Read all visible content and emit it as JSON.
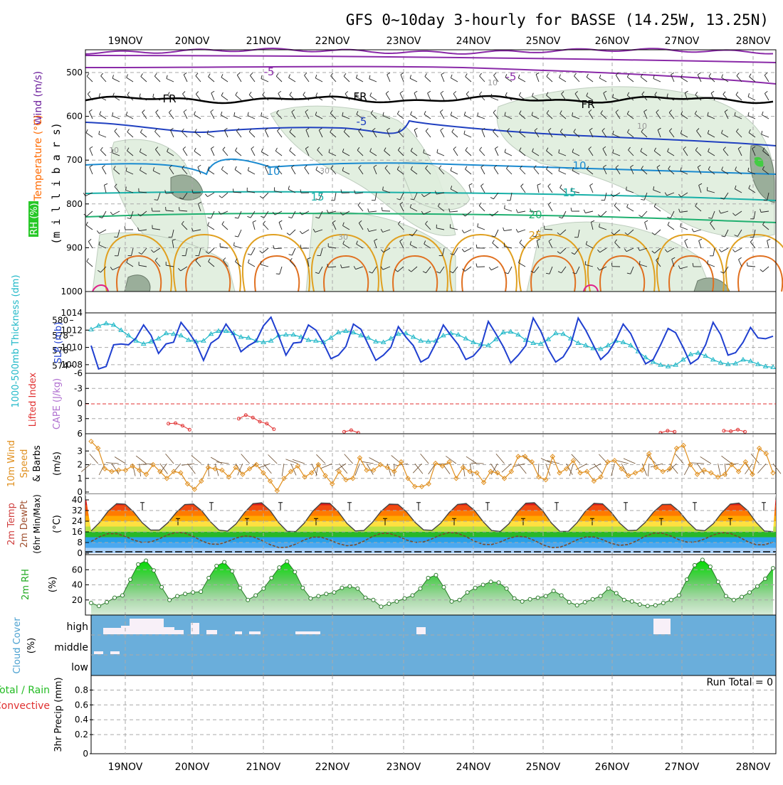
{
  "title": "GFS 0~10day 3-hourly for BASSE (14.25W, 13.25N)",
  "dates": [
    "19NOV",
    "20NOV",
    "21NOV",
    "22NOV",
    "23NOV",
    "24NOV",
    "25NOV",
    "26NOV",
    "27NOV",
    "28NOV"
  ],
  "colors": {
    "grid": "#aaaaaa",
    "wind_label": "#6a1b9a",
    "temp_label": "#ff6a00",
    "rh_label": "#00b000",
    "slp": "#1f3fd0",
    "thickness": "#20b8c8",
    "lifted": "#e03030",
    "cape": "#b070d0",
    "wind10": "#e09020",
    "rh2m": "#22cc22",
    "cloud": "#6aaedb",
    "cloud_gap": "#f8f0f8"
  },
  "panels": {
    "upper": {
      "ylabel_wind": "Wind (m/s)",
      "ylabel_temp": "Temperature (°C)",
      "ylabel_rh": "RH (%)",
      "ylabel_unit": "(m i l l i b a r s)",
      "yticks": [
        "500",
        "600",
        "700",
        "800",
        "900",
        "1000"
      ],
      "contour_labels": [
        {
          "text": "-5",
          "color": "#8a2aa8"
        },
        {
          "text": "-5",
          "color": "#8a2aa8"
        },
        {
          "text": "FR",
          "color": "#000000"
        },
        {
          "text": "FR",
          "color": "#000000"
        },
        {
          "text": "FR",
          "color": "#000000"
        },
        {
          "text": "-5",
          "color": "#2040c0"
        },
        {
          "text": "10",
          "color": "#1a8ad0"
        },
        {
          "text": "10",
          "color": "#1a8ad0"
        },
        {
          "text": "15",
          "color": "#18b0a8"
        },
        {
          "text": "15",
          "color": "#18b0a8"
        },
        {
          "text": "20",
          "color": "#20b070"
        },
        {
          "text": "25",
          "color": "#e0a020"
        },
        {
          "text": "10",
          "color": "#999999"
        },
        {
          "text": "10",
          "color": "#999999"
        },
        {
          "text": "30",
          "color": "#999999"
        },
        {
          "text": "30",
          "color": "#999999"
        },
        {
          "text": "10",
          "color": "#999999"
        }
      ]
    },
    "slp": {
      "ylabel_slp": "SLP (mb)",
      "ylabel_thick": "1000-500mb Thickness (dm)",
      "left_ticks": [
        "580",
        "578",
        "576",
        "574"
      ],
      "right_ticks": [
        "1014",
        "1012",
        "1010",
        "1008"
      ]
    },
    "li": {
      "ylabel_li": "Lifted Index",
      "ylabel_cape": "CAPE (J/kg)",
      "ticks": [
        "-6",
        "-3",
        "0",
        "3",
        "6"
      ]
    },
    "wind": {
      "ylabel_1": "10m Wind",
      "ylabel_2": "Speed",
      "ylabel_3": "& Barbs",
      "ylabel_unit": "(m/s)",
      "ticks": [
        "3",
        "2",
        "1",
        "0"
      ]
    },
    "temp": {
      "ylabel_1": "2m Temp",
      "ylabel_2": "2m DewPt",
      "ylabel_3": "(6hr Min/Max)",
      "ylabel_unit": "(°C)",
      "ticks": [
        "40",
        "32",
        "24",
        "16",
        "8",
        "0"
      ]
    },
    "rh": {
      "ylabel": "2m RH",
      "ylabel_unit": "(%)",
      "ticks": [
        "60",
        "40",
        "20"
      ]
    },
    "cloud": {
      "ylabel": "Cloud Cover",
      "ylabel_unit": "(%)",
      "levels": [
        "high",
        "middle",
        "low"
      ]
    },
    "precip": {
      "ylabel_1": "Total / Rain",
      "ylabel_2": "Convective",
      "ylabel_3": "3hr Precip (mm)",
      "ticks": [
        "0.8",
        "0.6",
        "0.4",
        "0.2",
        "0"
      ],
      "run_total": "Run Total = 0"
    }
  },
  "chart_data": [
    {
      "type": "line",
      "title": "SLP (mb)",
      "series": [
        {
          "name": "SLP (mb)",
          "values": [
            1010.2,
            1007.5,
            1007.8,
            1010.3,
            1010.4,
            1010.3,
            1011.1,
            1012.6,
            1011.4,
            1009.3,
            1010.4,
            1010.6,
            1012.9,
            1011.8,
            1010.5,
            1008.5,
            1010.5,
            1011.1,
            1012.7,
            1011.5,
            1009.5,
            1010.2,
            1010.7,
            1012.5,
            1013.5,
            1011.4,
            1009.1,
            1010.5,
            1010.6,
            1012.6,
            1012.0,
            1010.5,
            1008.7,
            1009.1,
            1010.1,
            1012.7,
            1012.1,
            1010.3,
            1008.5,
            1009.1,
            1010.0,
            1012.4,
            1011.2,
            1010.2,
            1008.3,
            1008.8,
            1010.5,
            1012.6,
            1011.4,
            1010.3,
            1008.6,
            1009.0,
            1010.0,
            1013.0,
            1011.6,
            1010.1,
            1008.2,
            1009.1,
            1010.2,
            1013.4,
            1011.9,
            1009.8,
            1008.3,
            1008.9,
            1010.3,
            1013.4,
            1012.0,
            1010.3,
            1008.6,
            1009.4,
            1010.8,
            1012.7,
            1011.6,
            1009.7,
            1008.1,
            1008.6,
            1010.3,
            1012.2,
            1011.7,
            1010.0,
            1008.1,
            1008.7,
            1010.3,
            1012.9,
            1011.5,
            1009.1,
            1009.4,
            1010.6,
            1012.3,
            1011.1,
            1011.0,
            1011.3
          ]
        }
      ],
      "ylim": [
        1007,
        1014
      ]
    },
    {
      "type": "line",
      "title": "1000-500mb Thickness (dm)",
      "series": [
        {
          "name": "Thickness (dm)",
          "values": [
            578.8,
            579.3,
            579.6,
            579.4,
            578.7,
            578.0,
            577.3,
            576.9,
            577.2,
            577.6,
            578.3,
            578.2,
            578.0,
            577.4,
            577.2,
            577.3,
            578.2,
            578.6,
            578.6,
            578.3,
            577.8,
            577.7,
            577.3,
            577.1,
            577.3,
            578.0,
            578.1,
            578.1,
            577.8,
            577.4,
            577.3,
            577.1,
            577.7,
            578.4,
            578.6,
            578.4,
            578.0,
            577.7,
            577.2,
            577.1,
            577.6,
            578.2,
            578.3,
            577.8,
            577.3,
            577.2,
            577.3,
            578.0,
            578.3,
            578.1,
            577.6,
            577.1,
            576.8,
            576.7,
            577.5,
            578.4,
            578.5,
            578.1,
            577.4,
            577.0,
            576.9,
            577.5,
            578.3,
            578.2,
            577.6,
            577.0,
            576.7,
            576.3,
            576.2,
            576.7,
            577.3,
            577.1,
            576.7,
            575.9,
            575.1,
            574.5,
            574.1,
            573.9,
            574.1,
            574.8,
            575.5,
            575.7,
            575.3,
            574.8,
            574.4,
            574.2,
            574.3,
            574.8,
            574.6,
            574.2,
            573.9,
            573.8
          ]
        }
      ],
      "ylim": [
        573,
        581
      ]
    },
    {
      "type": "line",
      "title": "Lifted Index",
      "series": [
        {
          "name": "Lifted Index",
          "values": [
            null,
            null,
            null,
            null,
            null,
            null,
            null,
            null,
            null,
            null,
            null,
            4.0,
            3.9,
            4.4,
            5.2,
            null,
            null,
            null,
            null,
            null,
            null,
            3.0,
            2.3,
            2.8,
            3.6,
            4.0,
            5.1,
            null,
            null,
            null,
            null,
            null,
            null,
            null,
            null,
            null,
            5.6,
            5.3,
            5.8,
            null,
            null,
            null,
            null,
            null,
            null,
            null,
            null,
            null,
            null,
            null,
            null,
            null,
            null,
            null,
            null,
            null,
            null,
            null,
            null,
            null,
            null,
            null,
            null,
            null,
            null,
            null,
            null,
            null,
            null,
            null,
            null,
            null,
            null,
            null,
            null,
            null,
            null,
            null,
            null,
            null,
            null,
            5.8,
            5.4,
            5.6,
            null,
            null,
            null,
            null,
            null,
            null,
            5.4,
            5.5,
            5.2,
            5.6,
            null,
            null,
            null,
            null
          ]
        }
      ],
      "ylim": [
        -6,
        6
      ]
    },
    {
      "type": "line",
      "title": "10m Wind Speed (m/s)",
      "series": [
        {
          "name": "10m Wind Speed",
          "values": [
            3.7,
            3.2,
            1.7,
            1.5,
            1.6,
            1.6,
            1.9,
            1.6,
            1.3,
            2.0,
            1.5,
            1.0,
            1.5,
            1.4,
            0.6,
            0.2,
            0.8,
            1.8,
            1.7,
            1.6,
            1.1,
            1.8,
            1.3,
            1.7,
            2.0,
            1.4,
            0.8,
            0.1,
            1.0,
            1.5,
            1.9,
            1.1,
            1.4,
            2.0,
            1.2,
            0.6,
            1.5,
            0.9,
            1.0,
            2.5,
            1.6,
            1.6,
            2.0,
            1.8,
            1.5,
            2.2,
            1.0,
            0.4,
            0.4,
            0.6,
            2.1,
            1.9,
            2.2,
            1.0,
            1.8,
            1.5,
            1.4,
            0.7,
            1.5,
            1.4,
            1.0,
            1.5,
            2.6,
            2.6,
            2.2,
            1.1,
            0.9,
            2.6,
            1.4,
            1.7,
            2.3,
            1.4,
            1.5,
            0.8,
            1.1,
            2.2,
            2.3,
            1.7,
            1.2,
            1.4,
            1.6,
            2.8,
            1.8,
            1.5,
            1.7,
            3.2,
            3.4,
            2.0,
            1.3,
            1.6,
            1.4,
            1.1,
            1.3,
            2.0,
            1.5,
            2.2,
            1.3,
            3.2,
            2.8,
            1.4
          ]
        }
      ],
      "ylim": [
        0,
        4
      ]
    },
    {
      "type": "line",
      "title": "2m RH (%)",
      "series": [
        {
          "name": "2m RH",
          "values": [
            16,
            12,
            17,
            23,
            26,
            47,
            67,
            72,
            59,
            37,
            20,
            25,
            28,
            30,
            31,
            49,
            65,
            70,
            58,
            36,
            20,
            26,
            35,
            49,
            63,
            71,
            57,
            36,
            22,
            25,
            28,
            30,
            36,
            38,
            35,
            23,
            20,
            11,
            15,
            18,
            22,
            26,
            35,
            49,
            53,
            37,
            18,
            20,
            30,
            36,
            40,
            44,
            43,
            35,
            22,
            18,
            21,
            23,
            25,
            32,
            26,
            17,
            13,
            17,
            21,
            25,
            35,
            29,
            20,
            18,
            14,
            12,
            13,
            16,
            20,
            26,
            47,
            66,
            73,
            64,
            44,
            25,
            20,
            24,
            30,
            38,
            48,
            62
          ]
        }
      ],
      "ylim": [
        0,
        80
      ]
    },
    {
      "type": "line",
      "title": "3hr Precip (mm)",
      "series": [
        {
          "name": "Total / Rain",
          "values": [
            0,
            0,
            0,
            0,
            0,
            0,
            0,
            0,
            0,
            0
          ]
        }
      ],
      "ylim": [
        0,
        1
      ]
    }
  ]
}
